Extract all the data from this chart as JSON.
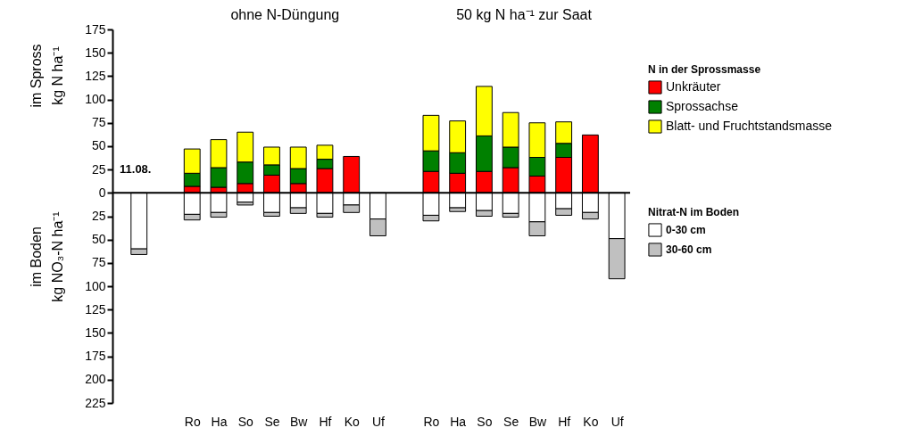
{
  "chart_data": {
    "type": "bar",
    "stacked": true,
    "categories": [
      null,
      null,
      "Ro",
      "Ha",
      "So",
      "Se",
      "Bw",
      "Hf",
      "Ko",
      "Uf",
      null,
      "Ro",
      "Ha",
      "So",
      "Se",
      "Bw",
      "Hf",
      "Ko",
      "Uf"
    ],
    "series": [
      {
        "name": "Unkräuter",
        "color": "#ff0000",
        "values": [
          null,
          null,
          7,
          6,
          10,
          19,
          10,
          26,
          39,
          null,
          null,
          23,
          21,
          23,
          27,
          18,
          38,
          62,
          null
        ]
      },
      {
        "name": "Sprossachse",
        "color": "#008000",
        "values": [
          null,
          null,
          14,
          21,
          23,
          11,
          16,
          10,
          null,
          null,
          null,
          22,
          22,
          38,
          22,
          20,
          15,
          null,
          null
        ]
      },
      {
        "name": "Blatt- und Fruchtstandsmasse",
        "color": "#ffff00",
        "values": [
          null,
          null,
          26,
          30,
          32,
          19,
          23,
          15,
          null,
          null,
          null,
          38,
          34,
          53,
          37,
          37,
          23,
          null,
          null
        ]
      },
      {
        "name": "0-30 cm",
        "color": "#ffffff",
        "values": [
          -60,
          null,
          -23,
          -21,
          -10,
          -21,
          -16,
          -22,
          -13,
          -28,
          null,
          -24,
          -16,
          -19,
          -22,
          -31,
          -17,
          -21,
          -49
        ]
      },
      {
        "name": "30-60 cm",
        "color": "#c0c0c0",
        "values": [
          -6,
          null,
          -6,
          -5,
          -3,
          -4,
          -6,
          -4,
          -8,
          -18,
          null,
          -6,
          -4,
          -6,
          -4,
          -15,
          -7,
          -7,
          -43
        ]
      }
    ],
    "ylim": [
      -225,
      175
    ],
    "yticks": [
      {
        "value": -225,
        "label": "225"
      },
      {
        "value": -200,
        "label": "200"
      },
      {
        "value": -175,
        "label": "175"
      },
      {
        "value": -150,
        "label": "150"
      },
      {
        "value": -125,
        "label": "125"
      },
      {
        "value": -100,
        "label": "100"
      },
      {
        "value": -75,
        "label": "75"
      },
      {
        "value": -50,
        "label": "50"
      },
      {
        "value": -25,
        "label": "25"
      },
      0,
      25,
      50,
      75,
      100,
      125,
      150,
      175
    ],
    "ylabel": "im Spross\nkg N ha⁻¹",
    "legend_title": "N in der Sprossmasse",
    "legend": "right",
    "ref_lines": [
      {
        "axis": "y",
        "value": 0
      }
    ],
    "annotations": [
      "ohne N-Düngung",
      "50 kg N ha⁻¹ zur Saat",
      "11.08.",
      "im Boden\nkg NO₃-N ha⁻¹",
      "Nitrat-N im Boden"
    ]
  }
}
